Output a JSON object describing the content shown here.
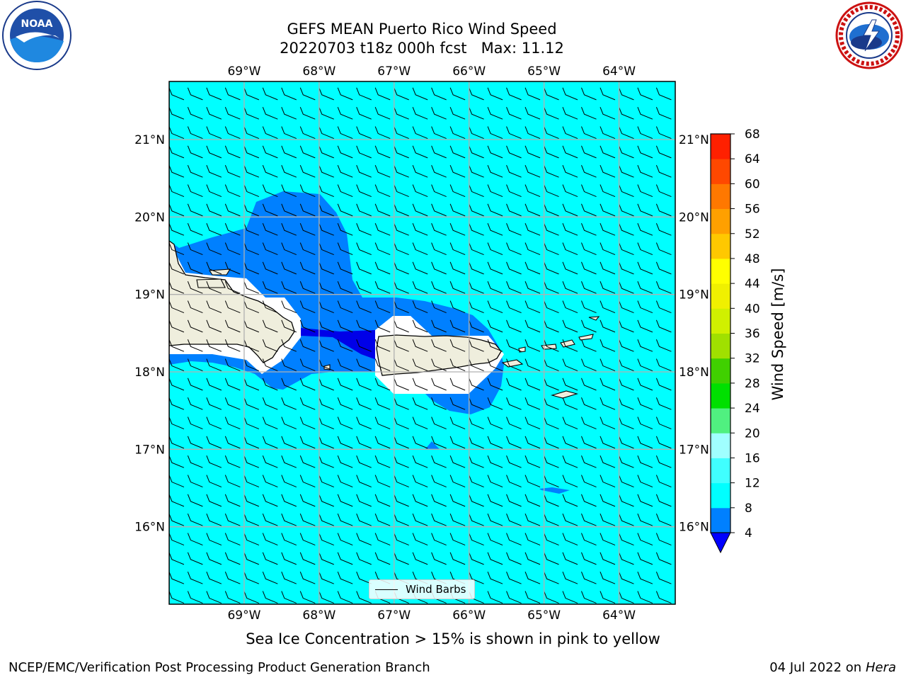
{
  "title": {
    "line1": "GEFS MEAN Puerto Rico Wind Speed",
    "line2": "20220703 t18z 000h fcst   Max: 11.12"
  },
  "map": {
    "lon_ticks": [
      "69°W",
      "68°W",
      "67°W",
      "66°W",
      "65°W",
      "64°W"
    ],
    "lat_ticks": [
      "21°N",
      "20°N",
      "19°N",
      "18°N",
      "17°N",
      "16°N"
    ],
    "lon_range": [
      -70.0,
      -63.25
    ],
    "lat_range": [
      15.0,
      21.75
    ],
    "land_color": "#efeedd",
    "gridlines": true
  },
  "colorbar": {
    "label": "Wind Speed [m/s]",
    "ticks": [
      "68",
      "64",
      "60",
      "56",
      "52",
      "48",
      "44",
      "40",
      "36",
      "32",
      "28",
      "24",
      "20",
      "16",
      "12",
      "8",
      "4"
    ],
    "levels": [
      4,
      8,
      12,
      16,
      20,
      24,
      28,
      32,
      36,
      40,
      44,
      48,
      52,
      56,
      60,
      64,
      68
    ],
    "colors": [
      "#0080ff",
      "#00ffff",
      "#40ffff",
      "#a0ffff",
      "#50f080",
      "#00e000",
      "#40d000",
      "#a0e000",
      "#d0f000",
      "#f0f000",
      "#ffff00",
      "#ffc800",
      "#ffa000",
      "#ff7800",
      "#ff4800",
      "#ff2000"
    ],
    "under_color": "#0000ff"
  },
  "wind_field": {
    "open_sea_color": "#00ffff",
    "light_wind_color": "#0080ff",
    "calm_color": "#0000e8"
  },
  "legend": {
    "label": "Wind Barbs"
  },
  "note": "Sea Ice Concentration > 15% is shown in pink to yellow",
  "footer": {
    "left": "NCEP/EMC/Verification Post Processing Product Generation Branch",
    "date": "04 Jul 2022 on ",
    "host": "Hera"
  },
  "logos": {
    "left": "noaa-logo",
    "right": "nws-logo"
  }
}
